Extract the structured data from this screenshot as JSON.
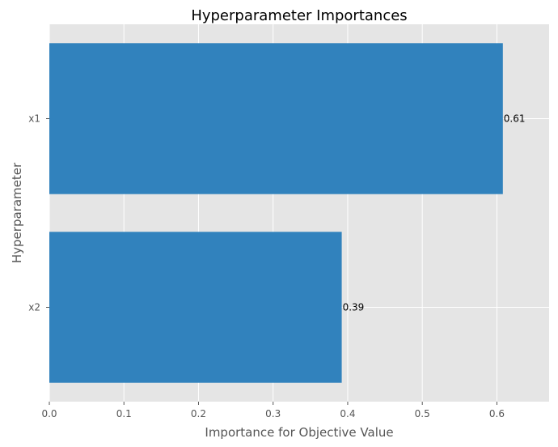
{
  "chart_data": {
    "type": "bar",
    "orientation": "horizontal",
    "title": "Hyperparameter Importances",
    "xlabel": "Importance for Objective Value",
    "ylabel": "Hyperparameter",
    "categories": [
      "x1",
      "x2"
    ],
    "values": [
      0.608,
      0.392
    ],
    "data_labels": [
      "0.61",
      "0.39"
    ],
    "xlim": [
      0,
      0.67
    ],
    "xticks": [
      0.0,
      0.1,
      0.2,
      0.3,
      0.4,
      0.5,
      0.6
    ],
    "xtick_labels": [
      "0.0",
      "0.1",
      "0.2",
      "0.3",
      "0.4",
      "0.5",
      "0.6"
    ],
    "grid": true,
    "colors": {
      "bar": "#3182bd",
      "plot_background": "#e5e5e5",
      "grid": "#ffffff"
    }
  }
}
